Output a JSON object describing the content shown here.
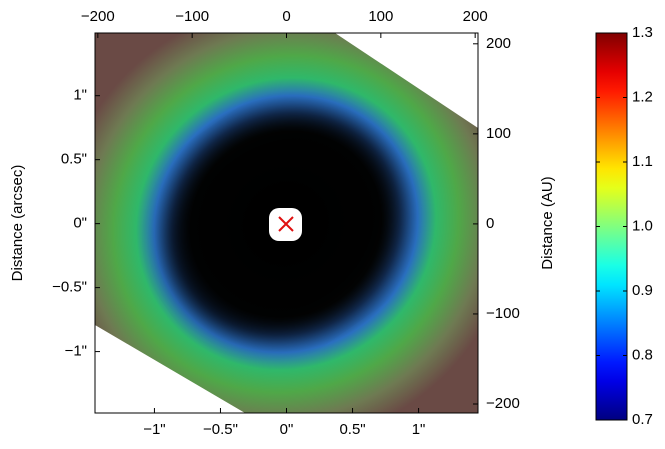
{
  "chart_data": {
    "type": "image",
    "xlim": [
      -1.45,
      1.45
    ],
    "xticks": [
      {
        "value": -1,
        "label": "−1\""
      },
      {
        "value": -0.5,
        "label": "−0.5\""
      },
      {
        "value": 0,
        "label": "0\""
      },
      {
        "value": 0.5,
        "label": "0.5\""
      },
      {
        "value": 1,
        "label": "1\""
      }
    ],
    "ylim": [
      -1.48,
      1.49
    ],
    "yticks": [
      {
        "value": -1,
        "label": "−1\""
      },
      {
        "value": -0.5,
        "label": "−0.5\""
      },
      {
        "value": 0,
        "label": "0\""
      },
      {
        "value": 0.5,
        "label": "0.5\""
      },
      {
        "value": 1,
        "label": "1\""
      }
    ],
    "ylabel": "Distance (arcsec)",
    "x2lim": [
      -203,
      203
    ],
    "x2ticks": [
      {
        "value": -200,
        "label": "−200"
      },
      {
        "value": -100,
        "label": "−100"
      },
      0,
      100,
      200
    ],
    "y2lim": [
      -210,
      212
    ],
    "y2ticks": [
      {
        "value": -200,
        "label": "−200"
      },
      {
        "value": -100,
        "label": "−100"
      },
      0,
      100,
      200
    ],
    "y2label": "Distance (AU)",
    "colorbar": {
      "colormap": "jet",
      "clim": [
        0.7,
        1.3
      ],
      "ticks": [
        0.7,
        0.8,
        0.9,
        {
          "value": 1,
          "label": "1.0"
        },
        1.1,
        1.2,
        1.3
      ]
    }
  }
}
